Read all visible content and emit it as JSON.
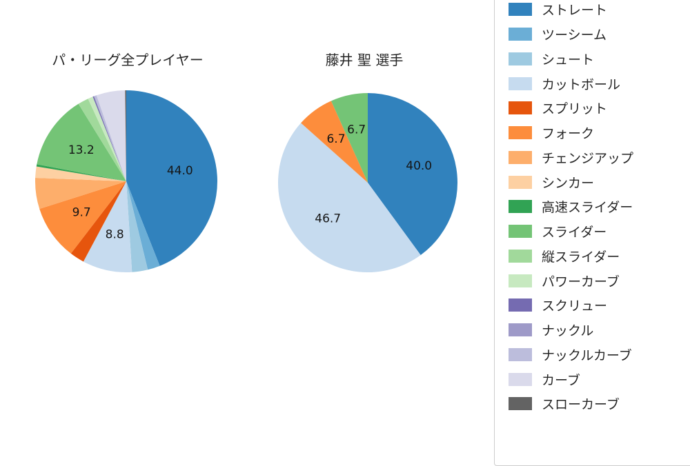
{
  "legend": {
    "items": [
      {
        "label": "ストレート",
        "color": "#3182bd"
      },
      {
        "label": "ツーシーム",
        "color": "#6baed6"
      },
      {
        "label": "シュート",
        "color": "#9ecae1"
      },
      {
        "label": "カットボール",
        "color": "#c6dbef"
      },
      {
        "label": "スプリット",
        "color": "#e6550d"
      },
      {
        "label": "フォーク",
        "color": "#fd8d3c"
      },
      {
        "label": "チェンジアップ",
        "color": "#fdae6b"
      },
      {
        "label": "シンカー",
        "color": "#fdd0a2"
      },
      {
        "label": "高速スライダー",
        "color": "#31a354"
      },
      {
        "label": "スライダー",
        "color": "#74c476"
      },
      {
        "label": "縦スライダー",
        "color": "#a1d99b"
      },
      {
        "label": "パワーカーブ",
        "color": "#c7e9c0"
      },
      {
        "label": "スクリュー",
        "color": "#756bb1"
      },
      {
        "label": "ナックル",
        "color": "#9e9ac8"
      },
      {
        "label": "ナックルカーブ",
        "color": "#bcbddc"
      },
      {
        "label": "カーブ",
        "color": "#dadaeb"
      },
      {
        "label": "スローカーブ",
        "color": "#636363"
      }
    ]
  },
  "chart_data": [
    {
      "type": "pie",
      "title": "パ・リーグ全プレイヤー",
      "value_unit": "percent",
      "start_angle": "top",
      "direction": "clockwise",
      "slices": [
        {
          "name": "ストレート",
          "value": 44.0,
          "label": "44.0"
        },
        {
          "name": "ツーシーム",
          "value": 2.2,
          "label": ""
        },
        {
          "name": "シュート",
          "value": 2.8,
          "label": ""
        },
        {
          "name": "カットボール",
          "value": 8.8,
          "label": "8.8"
        },
        {
          "name": "スプリット",
          "value": 2.6,
          "label": ""
        },
        {
          "name": "フォーク",
          "value": 9.7,
          "label": "9.7"
        },
        {
          "name": "チェンジアップ",
          "value": 5.5,
          "label": ""
        },
        {
          "name": "シンカー",
          "value": 2.0,
          "label": ""
        },
        {
          "name": "高速スライダー",
          "value": 0.4,
          "label": ""
        },
        {
          "name": "スライダー",
          "value": 13.2,
          "label": "13.2"
        },
        {
          "name": "縦スライダー",
          "value": 1.9,
          "label": ""
        },
        {
          "name": "パワーカーブ",
          "value": 0.9,
          "label": ""
        },
        {
          "name": "スクリュー",
          "value": 0.2,
          "label": ""
        },
        {
          "name": "ナックル",
          "value": 0.1,
          "label": ""
        },
        {
          "name": "ナックルカーブ",
          "value": 0.4,
          "label": ""
        },
        {
          "name": "カーブ",
          "value": 5.1,
          "label": ""
        },
        {
          "name": "スローカーブ",
          "value": 0.2,
          "label": ""
        }
      ]
    },
    {
      "type": "pie",
      "title": "藤井 聖 選手",
      "value_unit": "percent",
      "start_angle": "top",
      "direction": "clockwise",
      "slices": [
        {
          "name": "ストレート",
          "value": 40.0,
          "label": "40.0"
        },
        {
          "name": "カットボール",
          "value": 46.7,
          "label": "46.7"
        },
        {
          "name": "フォーク",
          "value": 6.7,
          "label": "6.7"
        },
        {
          "name": "スライダー",
          "value": 6.7,
          "label": "6.7"
        }
      ]
    }
  ]
}
